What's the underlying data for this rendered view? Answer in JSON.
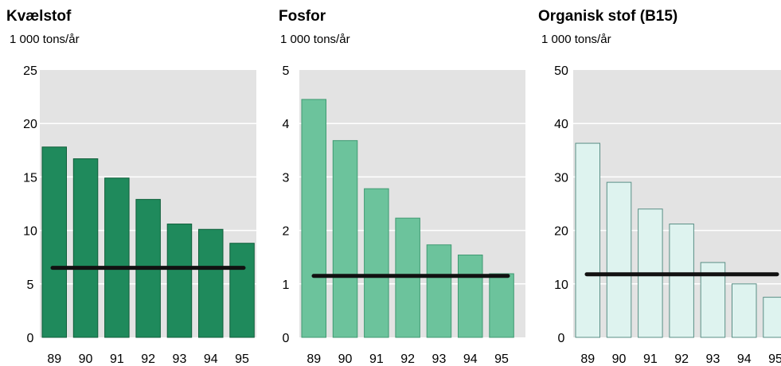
{
  "chart_data": [
    {
      "type": "bar",
      "title": "Kvælstof",
      "ylabel": "1 000 tons/år",
      "categories": [
        "89",
        "90",
        "91",
        "92",
        "93",
        "94",
        "95"
      ],
      "values": [
        17.8,
        16.7,
        14.9,
        12.9,
        10.6,
        10.1,
        8.8
      ],
      "ylim": [
        0,
        25
      ],
      "yticks": [
        0,
        5,
        10,
        15,
        20,
        25
      ],
      "target": 6.5,
      "grid": true,
      "colors": {
        "bar": "#1f8a5c",
        "bar_edge": "#0f5e3a",
        "plot_bg": "#e3e3e3",
        "target_line": "#111111"
      }
    },
    {
      "type": "bar",
      "title": "Fosfor",
      "ylabel": "1 000 tons/år",
      "categories": [
        "89",
        "90",
        "91",
        "92",
        "93",
        "94",
        "95"
      ],
      "values": [
        4.45,
        3.68,
        2.78,
        2.23,
        1.73,
        1.54,
        1.19
      ],
      "ylim": [
        0,
        5
      ],
      "yticks": [
        0,
        1,
        2,
        3,
        4,
        5
      ],
      "target": 1.15,
      "grid": true,
      "colors": {
        "bar": "#6cc39c",
        "bar_edge": "#3f9a72",
        "plot_bg": "#e3e3e3",
        "target_line": "#111111"
      }
    },
    {
      "type": "bar",
      "title": "Organisk stof (B15)",
      "ylabel": "1 000 tons/år",
      "categories": [
        "89",
        "90",
        "91",
        "92",
        "93",
        "94",
        "95"
      ],
      "values": [
        36.3,
        29.0,
        24.0,
        21.2,
        14.0,
        10.0,
        7.5
      ],
      "ylim": [
        0,
        50
      ],
      "yticks": [
        0,
        10,
        20,
        30,
        40,
        50
      ],
      "target": 11.8,
      "grid": true,
      "colors": {
        "bar": "#def3ef",
        "bar_edge": "#5a8f86",
        "plot_bg": "#e3e3e3",
        "target_line": "#111111"
      }
    }
  ]
}
